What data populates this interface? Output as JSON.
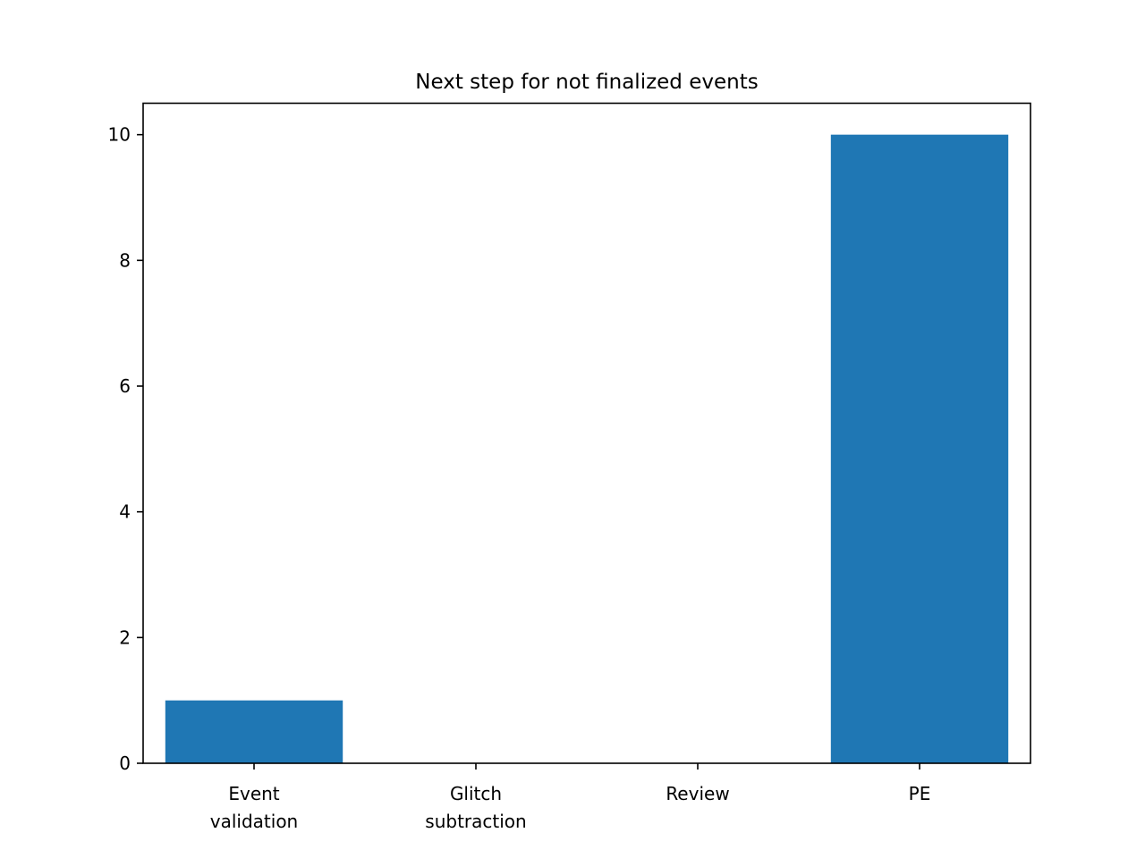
{
  "chart_data": {
    "type": "bar",
    "title": "Next step for not finalized events",
    "xlabel": "",
    "ylabel": "",
    "categories": [
      [
        "Event",
        "validation"
      ],
      [
        "Glitch",
        "subtraction"
      ],
      [
        "Review"
      ],
      [
        "PE"
      ]
    ],
    "values": [
      1,
      0,
      0,
      10
    ],
    "ylim": [
      0,
      10.5
    ],
    "yticks": [
      "0",
      "2",
      "4",
      "6",
      "8",
      "10"
    ],
    "grid": false,
    "bar_color": "#1f77b4"
  }
}
